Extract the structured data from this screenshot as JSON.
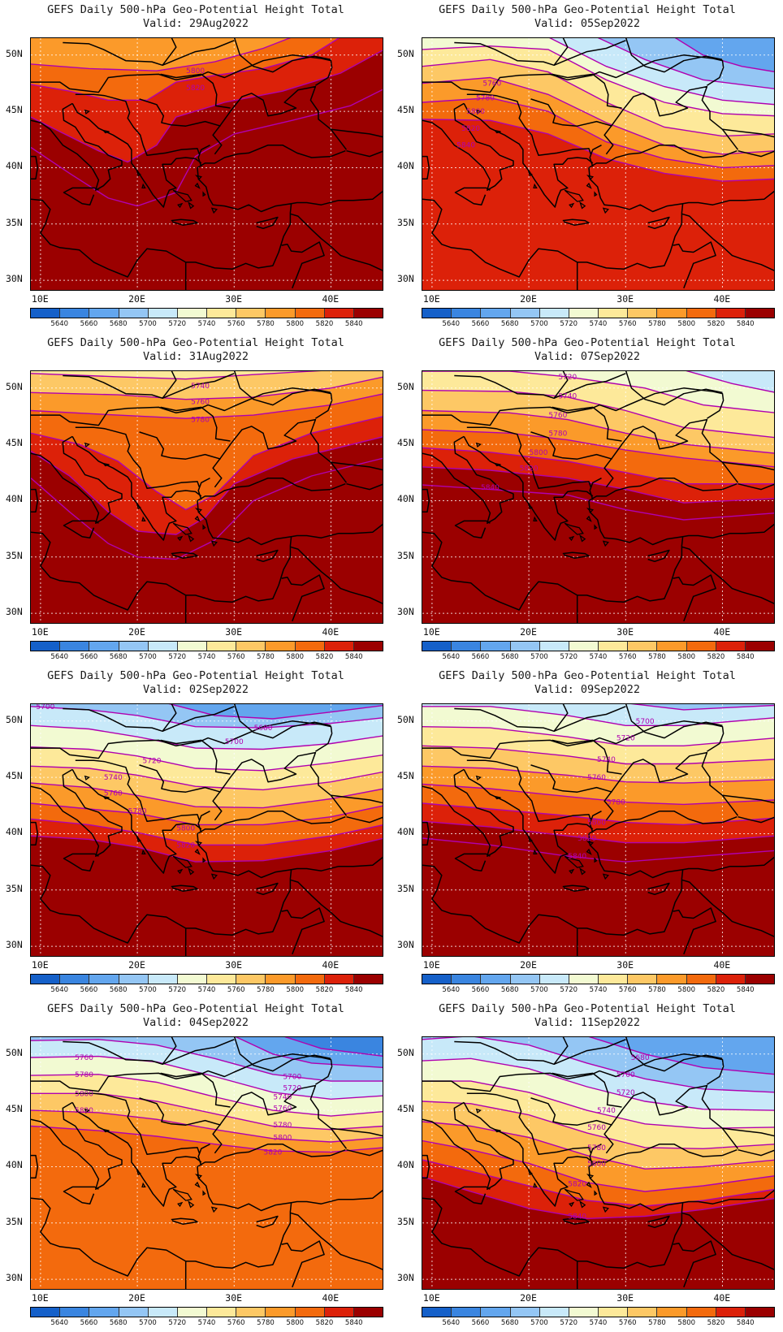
{
  "product_title": "GEFS Daily 500-hPa Geo-Potential Height Total",
  "valid_prefix": "Valid:",
  "lat_labels": [
    "50N",
    "45N",
    "40N",
    "35N",
    "30N"
  ],
  "lon_labels": [
    "10E",
    "20E",
    "30E",
    "40E"
  ],
  "colorbar": {
    "levels": [
      5640,
      5660,
      5680,
      5700,
      5720,
      5740,
      5760,
      5780,
      5800,
      5820,
      5840
    ],
    "colors": [
      "#1560c9",
      "#3a85e0",
      "#63a6ee",
      "#94c6f4",
      "#c8e9f9",
      "#f2fad2",
      "#fde99a",
      "#fdc865",
      "#fb9a2a",
      "#f36a0d",
      "#dc2109",
      "#9b0000"
    ],
    "contour_color": "#b000b0"
  },
  "panels": [
    {
      "valid_date": "29Aug2022",
      "contour_labels": [
        "5800",
        "5820"
      ]
    },
    {
      "valid_date": "05Sep2022",
      "contour_labels": [
        "5760",
        "5780",
        "5800",
        "5820",
        "5840"
      ]
    },
    {
      "valid_date": "31Aug2022",
      "contour_labels": [
        "5740",
        "5760",
        "5780"
      ]
    },
    {
      "valid_date": "07Sep2022",
      "contour_labels": [
        "5720",
        "5740",
        "5760",
        "5780",
        "5800",
        "5820",
        "5840"
      ]
    },
    {
      "valid_date": "02Sep2022",
      "contour_labels": [
        "5700",
        "5680",
        "5700",
        "5720",
        "5740",
        "5760",
        "5780",
        "5800",
        "5820"
      ]
    },
    {
      "valid_date": "09Sep2022",
      "contour_labels": [
        "5700",
        "5720",
        "5740",
        "5760",
        "5780",
        "5800",
        "5820",
        "5840"
      ]
    },
    {
      "valid_date": "04Sep2022",
      "contour_labels": [
        "5760",
        "5780",
        "5800",
        "5820",
        "5700",
        "5720",
        "5740",
        "5760",
        "5780",
        "5800",
        "5820"
      ]
    },
    {
      "valid_date": "11Sep2022",
      "contour_labels": [
        "5680",
        "5700",
        "5720",
        "5740",
        "5760",
        "5780",
        "5800",
        "5820",
        "5840"
      ]
    }
  ]
}
